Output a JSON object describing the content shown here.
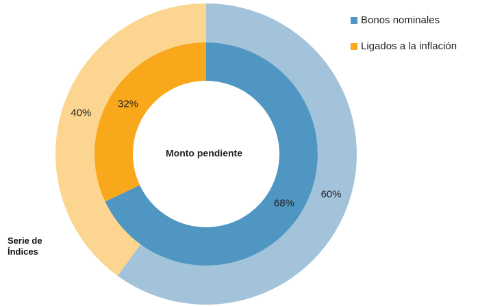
{
  "chart_data": {
    "type": "donut",
    "categories": [
      "Bonos nominales",
      "Ligados a la inflación"
    ],
    "legend_colors": [
      "#4f97c2",
      "#f9a71b"
    ],
    "rings": [
      {
        "name": "Serie de Índices",
        "values": [
          60,
          40
        ],
        "value_labels": [
          "60%",
          "40%"
        ],
        "colors": [
          "#a3c3da",
          "#fcd690"
        ]
      },
      {
        "name": "Monto pendiente",
        "values": [
          68,
          32
        ],
        "value_labels": [
          "68%",
          "32%"
        ],
        "colors": [
          "#4f97c2",
          "#f9a71b"
        ]
      }
    ]
  }
}
